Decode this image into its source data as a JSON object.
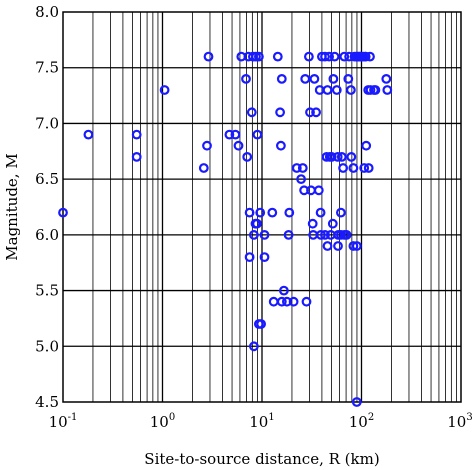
{
  "chart_data": {
    "type": "scatter",
    "title": "",
    "xlabel": "Site-to-source distance, R (km)",
    "ylabel": "Magnitude, M",
    "x_scale": "log",
    "xlim": [
      0.1,
      1000
    ],
    "ylim": [
      4.5,
      8.0
    ],
    "x_tick_labels": [
      {
        "value": 0.1,
        "base": "10",
        "exp": "-1"
      },
      {
        "value": 1,
        "base": "10",
        "exp": "0"
      },
      {
        "value": 10,
        "base": "10",
        "exp": "1"
      },
      {
        "value": 100,
        "base": "10",
        "exp": "2"
      },
      {
        "value": 1000,
        "base": "10",
        "exp": "3"
      }
    ],
    "y_ticks": [
      4.5,
      5.0,
      5.5,
      6.0,
      6.5,
      7.0,
      7.5,
      8.0
    ],
    "y_tick_labels": [
      "4.5",
      "5.0",
      "5.5",
      "6.0",
      "6.5",
      "7.0",
      "7.5",
      "8.0"
    ],
    "grid": true,
    "marker_color": "#1a1aff",
    "points": [
      [
        0.1,
        6.2
      ],
      [
        0.18,
        6.9
      ],
      [
        0.55,
        6.9
      ],
      [
        0.55,
        6.7
      ],
      [
        1.05,
        7.3
      ],
      [
        2.6,
        6.6
      ],
      [
        2.8,
        6.8
      ],
      [
        2.9,
        7.6
      ],
      [
        4.7,
        6.9
      ],
      [
        5.4,
        6.9
      ],
      [
        5.8,
        6.8
      ],
      [
        6.2,
        7.6
      ],
      [
        6.9,
        7.4
      ],
      [
        7.1,
        6.7
      ],
      [
        7.3,
        7.6
      ],
      [
        7.5,
        6.2
      ],
      [
        7.5,
        5.8
      ],
      [
        7.9,
        7.1
      ],
      [
        8.1,
        7.6
      ],
      [
        8.7,
        7.6
      ],
      [
        9.0,
        6.9
      ],
      [
        9.3,
        7.6
      ],
      [
        8.3,
        6.0
      ],
      [
        8.6,
        6.1
      ],
      [
        8.9,
        6.1
      ],
      [
        9.6,
        6.2
      ],
      [
        8.3,
        5.0
      ],
      [
        9.3,
        5.2
      ],
      [
        9.8,
        5.2
      ],
      [
        10.6,
        6.0
      ],
      [
        10.6,
        5.8
      ],
      [
        12.7,
        6.2
      ],
      [
        13.1,
        5.4
      ],
      [
        14.4,
        7.6
      ],
      [
        15.2,
        7.1
      ],
      [
        15.5,
        6.8
      ],
      [
        15.8,
        7.4
      ],
      [
        15.8,
        5.4
      ],
      [
        16.6,
        5.5
      ],
      [
        17.8,
        5.4
      ],
      [
        18.5,
        6.0
      ],
      [
        18.8,
        6.2
      ],
      [
        20.8,
        5.4
      ],
      [
        22.4,
        6.6
      ],
      [
        24.7,
        6.5
      ],
      [
        25.7,
        6.6
      ],
      [
        27.2,
        7.4
      ],
      [
        26.5,
        6.4
      ],
      [
        28.0,
        5.4
      ],
      [
        29.6,
        7.6
      ],
      [
        30.4,
        7.1
      ],
      [
        31.1,
        6.4
      ],
      [
        32.3,
        6.1
      ],
      [
        32.7,
        6.0
      ],
      [
        33.6,
        7.4
      ],
      [
        35.0,
        7.1
      ],
      [
        37.2,
        6.4
      ],
      [
        38.0,
        7.3
      ],
      [
        38.8,
        6.2
      ],
      [
        39.1,
        6.0
      ],
      [
        40.0,
        7.6
      ],
      [
        43.0,
        6.0
      ],
      [
        43.0,
        7.6
      ],
      [
        44.6,
        6.7
      ],
      [
        45.5,
        7.3
      ],
      [
        45.5,
        5.9
      ],
      [
        47.2,
        7.6
      ],
      [
        48.0,
        6.7
      ],
      [
        49.1,
        6.0
      ],
      [
        50.2,
        6.7
      ],
      [
        51.5,
        6.1
      ],
      [
        52.2,
        7.4
      ],
      [
        53.6,
        7.6
      ],
      [
        56.5,
        7.3
      ],
      [
        57.6,
        6.7
      ],
      [
        58.1,
        5.9
      ],
      [
        58.3,
        6.0
      ],
      [
        62.1,
        6.2
      ],
      [
        62.1,
        6.0
      ],
      [
        63.4,
        6.7
      ],
      [
        65.3,
        6.6
      ],
      [
        67.1,
        7.6
      ],
      [
        67.1,
        6.0
      ],
      [
        70.8,
        6.0
      ],
      [
        73.6,
        7.4
      ],
      [
        75.1,
        7.6
      ],
      [
        78.3,
        7.3
      ],
      [
        79.0,
        6.7
      ],
      [
        83.0,
        6.6
      ],
      [
        83.0,
        5.9
      ],
      [
        85.1,
        7.6
      ],
      [
        88.5,
        7.6
      ],
      [
        89.6,
        5.9
      ],
      [
        89.6,
        4.5
      ],
      [
        91.1,
        7.6
      ],
      [
        93.8,
        7.6
      ],
      [
        96.1,
        7.6
      ],
      [
        98.4,
        7.6
      ],
      [
        99.8,
        7.6
      ],
      [
        104.0,
        7.6
      ],
      [
        106.5,
        6.6
      ],
      [
        109.0,
        7.6
      ],
      [
        110.3,
        7.6
      ],
      [
        111.6,
        6.8
      ],
      [
        116.7,
        7.3
      ],
      [
        118.1,
        6.6
      ],
      [
        121.8,
        7.6
      ],
      [
        123.2,
        7.3
      ],
      [
        133.4,
        7.3
      ],
      [
        138.1,
        7.3
      ],
      [
        177.6,
        7.4
      ],
      [
        181.8,
        7.3
      ]
    ]
  }
}
